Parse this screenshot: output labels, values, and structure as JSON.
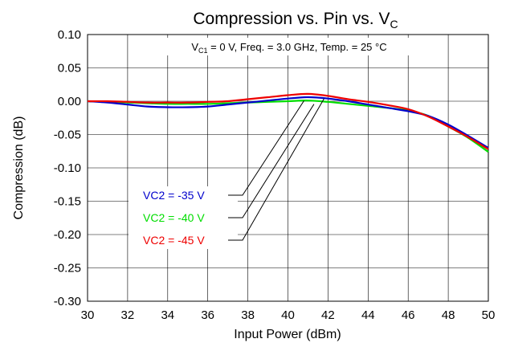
{
  "chart_data": {
    "type": "line",
    "title": {
      "main": "Compression vs. Pin vs. V",
      "sub": "C"
    },
    "subtitle": {
      "p1": "V",
      "p1_sub": "C1",
      "p2": " = 0 V, Freq. = 3.0 GHz, Temp. = 25 °C"
    },
    "xlabel": "Input Power (dBm)",
    "ylabel": "Compression (dB)",
    "xlim": [
      30,
      50
    ],
    "ylim": [
      -0.3,
      0.1
    ],
    "xticks": [
      30,
      32,
      34,
      36,
      38,
      40,
      42,
      44,
      46,
      48,
      50
    ],
    "yticks": [
      0.1,
      0.05,
      0.0,
      -0.05,
      -0.1,
      -0.15,
      -0.2,
      -0.25,
      -0.3
    ],
    "xtick_labels": [
      "30",
      "32",
      "34",
      "36",
      "38",
      "40",
      "42",
      "44",
      "46",
      "48",
      "50"
    ],
    "ytick_labels": [
      "0.10",
      "0.05",
      "0.00",
      "-0.05",
      "-0.10",
      "-0.15",
      "-0.20",
      "-0.25",
      "-0.30"
    ],
    "grid": true,
    "legend_placement": "lower-left",
    "series": [
      {
        "name": "VC2 = -35 V",
        "color": "#0000cc",
        "x": [
          30,
          31,
          32,
          33,
          34,
          35,
          36,
          37,
          38,
          39,
          40,
          41,
          42,
          43,
          44,
          45,
          46,
          47,
          48,
          49,
          50
        ],
        "y": [
          0.0,
          -0.002,
          -0.005,
          -0.008,
          -0.009,
          -0.009,
          -0.008,
          -0.005,
          -0.002,
          0.001,
          0.004,
          0.006,
          0.004,
          0.0,
          -0.005,
          -0.01,
          -0.015,
          -0.022,
          -0.035,
          -0.052,
          -0.07
        ]
      },
      {
        "name": "VC2 = -40 V",
        "color": "#00dd00",
        "x": [
          30,
          31,
          32,
          33,
          34,
          35,
          36,
          37,
          38,
          39,
          40,
          41,
          42,
          43,
          44,
          45,
          46,
          47,
          48,
          49,
          50
        ],
        "y": [
          0.0,
          -0.001,
          -0.002,
          -0.003,
          -0.004,
          -0.004,
          -0.004,
          -0.003,
          -0.002,
          -0.001,
          0.0,
          0.001,
          -0.001,
          -0.004,
          -0.007,
          -0.01,
          -0.014,
          -0.022,
          -0.038,
          -0.055,
          -0.076
        ]
      },
      {
        "name": "VC2 = -45 V",
        "color": "#ee0000",
        "x": [
          30,
          31,
          32,
          33,
          34,
          35,
          36,
          37,
          38,
          39,
          40,
          41,
          42,
          43,
          44,
          45,
          46,
          47,
          48,
          49,
          50
        ],
        "y": [
          0.0,
          0.0,
          -0.001,
          -0.002,
          -0.002,
          -0.002,
          -0.001,
          0.0,
          0.003,
          0.006,
          0.009,
          0.011,
          0.008,
          0.003,
          -0.001,
          -0.006,
          -0.012,
          -0.023,
          -0.038,
          -0.054,
          -0.072
        ]
      }
    ],
    "legend_leaders": [
      {
        "series": 0,
        "target_x": 40.8
      },
      {
        "series": 1,
        "target_x": 41.3
      },
      {
        "series": 2,
        "target_x": 41.8
      }
    ]
  }
}
